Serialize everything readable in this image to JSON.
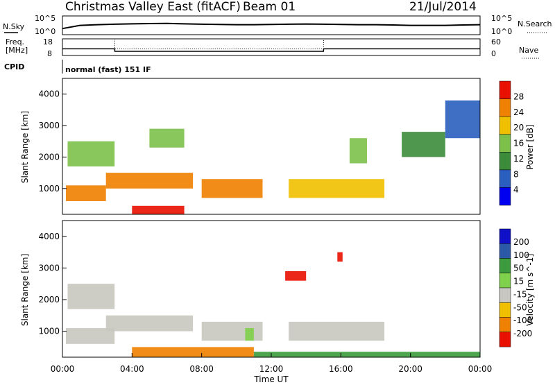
{
  "header": {
    "title": "Christmas Valley East (fitACF)",
    "beam": "Beam 01",
    "date": "21/Jul/2014"
  },
  "noise_panel": {
    "left_label": "N.Sky",
    "right_label": "N.Search",
    "tick_top": "10^5",
    "tick_bottom": "10^0"
  },
  "freq_panel": {
    "left_label_1": "Freq.",
    "left_label_2": "[MHz]",
    "tick_top": "18",
    "tick_bottom": "8",
    "right_label": "Nave",
    "right_tick_top": "60",
    "right_tick_bottom": "0"
  },
  "cpid_panel": {
    "label": "CPID",
    "text": "normal (fast) 151 IF"
  },
  "x_axis": {
    "label": "Time UT",
    "ticks": [
      "00:00",
      "04:00",
      "08:00",
      "12:00",
      "16:00",
      "20:00",
      "00:00"
    ]
  },
  "power_panel": {
    "ylabel": "Slant Range [km]",
    "yticks": [
      "1000",
      "2000",
      "3000",
      "4000"
    ],
    "colorbar_label": "Power [dB]",
    "colorbar_ticks": [
      "4",
      "8",
      "12",
      "16",
      "20",
      "24",
      "28"
    ],
    "colors": [
      "#0000ee",
      "#2a5fbf",
      "#3c8c3c",
      "#7cc04a",
      "#f0c000",
      "#f08000",
      "#e81000"
    ]
  },
  "velocity_panel": {
    "ylabel": "Slant Range [km]",
    "yticks": [
      "1000",
      "2000",
      "3000",
      "4000"
    ],
    "colorbar_label": "Velocity [m s^-1]",
    "colorbar_ticks": [
      "200",
      "100",
      "50",
      "15",
      "-15",
      "-50",
      "-100",
      "-200"
    ],
    "colors": [
      "#1010c8",
      "#2c58a8",
      "#3c9b3c",
      "#7fd04a",
      "#c8c8c0",
      "#f0c000",
      "#f08000",
      "#e81000"
    ]
  },
  "chart_data": [
    {
      "type": "line",
      "title": "Christmas Valley East (fitACF) Beam 01 21/Jul/2014",
      "series": [
        {
          "name": "N.Sky",
          "x": [
            0,
            1,
            2,
            3,
            4,
            5,
            6,
            7,
            8,
            9,
            10,
            11,
            12,
            13,
            14,
            15,
            16,
            17,
            18,
            19,
            20,
            21,
            22,
            23,
            24
          ],
          "y": [
            30,
            300,
            500,
            700,
            900,
            1100,
            1200,
            900,
            700,
            600,
            500,
            500,
            600,
            700,
            800,
            700,
            600,
            500,
            500,
            400,
            300,
            300,
            300,
            400,
            500
          ]
        }
      ],
      "xlabel": "Time UT",
      "xlim": [
        0,
        24
      ],
      "ylim": [
        1,
        100000
      ],
      "log_y": true
    },
    {
      "type": "line",
      "series": [
        {
          "name": "Freq.",
          "x": [
            0,
            3,
            3.01,
            15,
            15.01,
            24
          ],
          "y": [
            12,
            12,
            10.5,
            10.5,
            12,
            12
          ]
        },
        {
          "name": "Nave",
          "x": [
            0,
            3,
            3.01,
            15,
            15.01,
            24
          ],
          "y": [
            18,
            18,
            12,
            12,
            18,
            18
          ]
        }
      ],
      "xlim": [
        0,
        24
      ],
      "ylim": [
        8,
        18
      ]
    },
    {
      "type": "heatmap",
      "title": "Power",
      "xlabel": "Time UT",
      "ylabel": "Slant Range [km]",
      "xlim": [
        0,
        24
      ],
      "ylim": [
        180,
        4500
      ],
      "colorbar": {
        "label": "Power [dB]",
        "range": [
          0,
          30
        ]
      },
      "regions": [
        {
          "t0": 0.2,
          "t1": 2.5,
          "r0": 600,
          "r1": 1100,
          "v": 22
        },
        {
          "t0": 2.5,
          "t1": 7.5,
          "r0": 1000,
          "r1": 1500,
          "v": 24
        },
        {
          "t0": 4.0,
          "t1": 7.0,
          "r0": 180,
          "r1": 450,
          "v": 28
        },
        {
          "t0": 8.0,
          "t1": 11.5,
          "r0": 700,
          "r1": 1300,
          "v": 22
        },
        {
          "t0": 0.3,
          "t1": 3.0,
          "r0": 1700,
          "r1": 2500,
          "v": 14
        },
        {
          "t0": 5.0,
          "t1": 7.0,
          "r0": 2300,
          "r1": 2900,
          "v": 16
        },
        {
          "t0": 13.0,
          "t1": 18.5,
          "r0": 700,
          "r1": 1300,
          "v": 20
        },
        {
          "t0": 16.5,
          "t1": 17.5,
          "r0": 1800,
          "r1": 2600,
          "v": 14
        },
        {
          "t0": 19.5,
          "t1": 22.0,
          "r0": 2000,
          "r1": 2800,
          "v": 10
        },
        {
          "t0": 22.0,
          "t1": 24.0,
          "r0": 2600,
          "r1": 3800,
          "v": 8
        }
      ]
    },
    {
      "type": "heatmap",
      "title": "Velocity",
      "xlabel": "Time UT",
      "ylabel": "Slant Range [km]",
      "xlim": [
        0,
        24
      ],
      "ylim": [
        180,
        4500
      ],
      "colorbar": {
        "label": "Velocity [m s^-1]",
        "range": [
          -200,
          200
        ]
      },
      "regions": [
        {
          "t0": 0.2,
          "t1": 3.0,
          "r0": 600,
          "r1": 1100,
          "v": 0
        },
        {
          "t0": 2.5,
          "t1": 7.5,
          "r0": 1000,
          "r1": 1500,
          "v": 0
        },
        {
          "t0": 0.3,
          "t1": 3.0,
          "r0": 1700,
          "r1": 2500,
          "v": 0
        },
        {
          "t0": 8.0,
          "t1": 11.5,
          "r0": 700,
          "r1": 1300,
          "v": 0
        },
        {
          "t0": 13.0,
          "t1": 18.5,
          "r0": 700,
          "r1": 1300,
          "v": 0
        },
        {
          "t0": 12.8,
          "t1": 14.0,
          "r0": 2600,
          "r1": 2900,
          "v": -200
        },
        {
          "t0": 15.8,
          "t1": 16.1,
          "r0": 3200,
          "r1": 3500,
          "v": -200
        },
        {
          "t0": 4.0,
          "t1": 11.0,
          "r0": 180,
          "r1": 500,
          "v": -50
        },
        {
          "t0": 11.0,
          "t1": 24.0,
          "r0": 180,
          "r1": 350,
          "v": 50
        },
        {
          "t0": 10.5,
          "t1": 11.0,
          "r0": 700,
          "r1": 1100,
          "v": 40
        }
      ]
    }
  ]
}
